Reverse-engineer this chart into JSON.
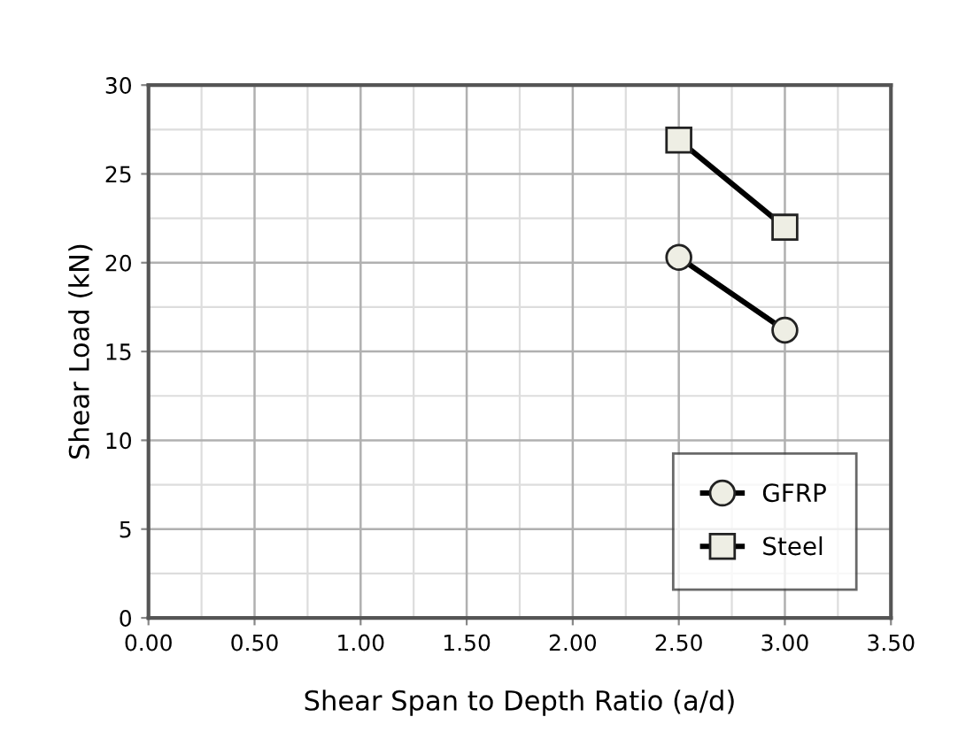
{
  "chart_data": {
    "type": "line",
    "xlabel": "Shear Span to Depth Ratio (a/d)",
    "ylabel": "Shear Load (kN)",
    "x": [
      2.5,
      3.0
    ],
    "series": [
      {
        "name": "GFRP",
        "color": "#000000",
        "marker": "circle",
        "values": [
          20.3,
          16.2
        ]
      },
      {
        "name": "Steel",
        "color": "#000000",
        "marker": "square",
        "values": [
          26.9,
          22.0
        ]
      }
    ],
    "xlim": [
      0,
      3.5
    ],
    "ylim": [
      0,
      30
    ],
    "xticks": [
      {
        "value": 0,
        "label": "0.00"
      },
      {
        "value": 0.5,
        "label": "0.50"
      },
      {
        "value": 1,
        "label": "1.00"
      },
      {
        "value": 1.5,
        "label": "1.50"
      },
      {
        "value": 2,
        "label": "2.00"
      },
      {
        "value": 2.5,
        "label": "2.50"
      },
      {
        "value": 3,
        "label": "3.00"
      },
      {
        "value": 3.5,
        "label": "3.50"
      }
    ],
    "yticks": [
      0,
      5,
      10,
      15,
      20,
      25,
      30
    ],
    "grid": true,
    "legend": "bottom right",
    "line_style": "solid"
  }
}
